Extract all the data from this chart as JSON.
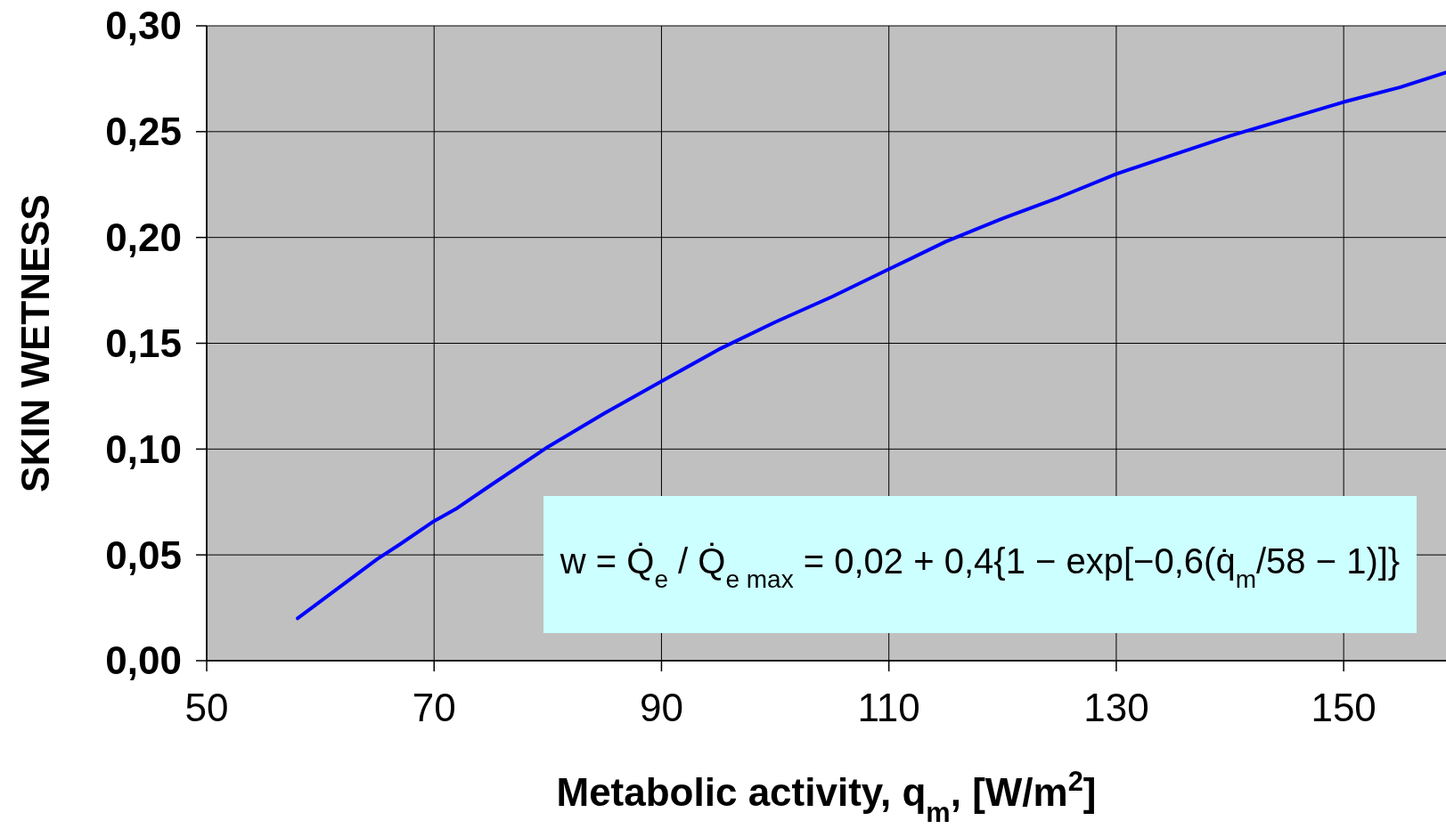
{
  "chart_data": {
    "type": "line",
    "xlabel": "Metabolic activity, q$_{m}$, [W/m$^{2}$]",
    "ylabel": "SKIN WETNESS",
    "x": [
      58,
      60,
      63,
      65,
      67,
      70,
      72,
      75,
      80,
      85,
      90,
      95,
      100,
      105,
      110,
      115,
      120,
      125,
      130,
      135,
      140,
      145,
      150,
      155,
      159
    ],
    "series": [
      {
        "color": "#0000ff",
        "values": [
          0.02,
          0.028,
          0.04,
          0.048,
          0.055,
          0.066,
          0.072,
          0.083,
          0.101,
          0.117,
          0.132,
          0.147,
          0.16,
          0.172,
          0.185,
          0.198,
          0.209,
          0.219,
          0.23,
          0.239,
          0.248,
          0.256,
          0.264,
          0.271,
          0.278
        ]
      }
    ],
    "xlim": [
      50,
      159
    ],
    "xticks": [
      50,
      70,
      90,
      110,
      130,
      150
    ],
    "ylim": [
      0,
      0.3
    ],
    "yticks": [
      {
        "value": 0,
        "label": "0,00"
      },
      {
        "value": 0.05,
        "label": "0,05"
      },
      {
        "value": 0.1,
        "label": "0,10"
      },
      {
        "value": 0.15,
        "label": "0,15"
      },
      {
        "value": 0.2,
        "label": "0,20"
      },
      {
        "value": 0.25,
        "label": "0,25"
      },
      {
        "value": 0.3,
        "label": "0,30"
      }
    ],
    "grid": true,
    "marker": "none",
    "line_style": "solid",
    "annotations": [
      "w = Q̇$_{e}$ / Q̇$_{e max}$ = 0,02 + 0,4{1 − exp[−0,6(q̇$_{m}$/58 − 1)]}"
    ]
  }
}
